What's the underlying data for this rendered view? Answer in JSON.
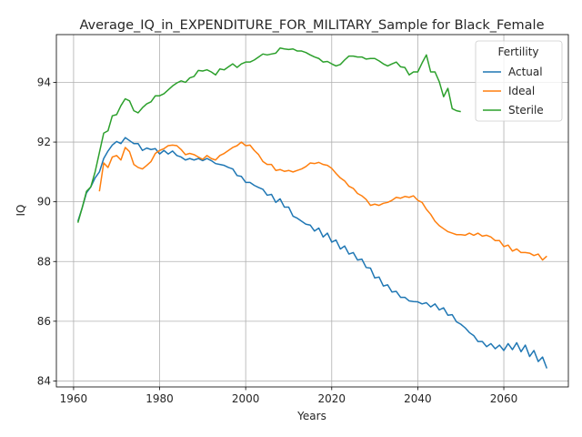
{
  "chart_data": {
    "type": "line",
    "title": "Average_IQ_in_EXPENDITURE_FOR_MILITARY_Sample for Black_Female",
    "xlabel": "Years",
    "ylabel": "IQ",
    "xlim": [
      1956,
      2075
    ],
    "ylim": [
      83.8,
      95.6
    ],
    "xticks": [
      1960,
      1980,
      2000,
      2020,
      2040,
      2060
    ],
    "yticks": [
      84,
      86,
      88,
      90,
      92,
      94
    ],
    "grid": true,
    "legend": {
      "title": "Fertility",
      "position": "top-right"
    },
    "series": [
      {
        "name": "Actual",
        "color": "#1f77b4",
        "x": [
          1961,
          1962,
          1963,
          1964,
          1965,
          1966,
          1967,
          1968,
          1969,
          1970,
          1971,
          1972,
          1973,
          1974,
          1975,
          1976,
          1977,
          1978,
          1979,
          1980,
          1981,
          1982,
          1983,
          1984,
          1985,
          1986,
          1987,
          1988,
          1989,
          1990,
          1991,
          1992,
          1993,
          1994,
          1995,
          1996,
          1997,
          1998,
          1999,
          2000,
          2001,
          2002,
          2003,
          2004,
          2005,
          2006,
          2007,
          2008,
          2009,
          2010,
          2011,
          2012,
          2013,
          2014,
          2015,
          2016,
          2017,
          2018,
          2019,
          2020,
          2021,
          2022,
          2023,
          2024,
          2025,
          2026,
          2027,
          2028,
          2029,
          2030,
          2031,
          2032,
          2033,
          2034,
          2035,
          2036,
          2037,
          2038,
          2039,
          2040,
          2041,
          2042,
          2043,
          2044,
          2045,
          2046,
          2047,
          2048,
          2049,
          2050,
          2051,
          2052,
          2053,
          2054,
          2055,
          2056,
          2057,
          2058,
          2059,
          2060,
          2061,
          2062,
          2063,
          2064,
          2065,
          2066,
          2067,
          2068,
          2069,
          2070
        ],
        "values": [
          89.35,
          89.8,
          90.3,
          90.5,
          90.8,
          91.0,
          91.45,
          91.7,
          91.9,
          92.02,
          91.95,
          92.15,
          92.05,
          91.95,
          91.95,
          91.72,
          91.8,
          91.75,
          91.78,
          91.6,
          91.72,
          91.6,
          91.7,
          91.55,
          91.5,
          91.4,
          91.45,
          91.4,
          91.45,
          91.38,
          91.45,
          91.38,
          91.28,
          91.25,
          91.22,
          91.15,
          91.1,
          90.88,
          90.85,
          90.65,
          90.65,
          90.55,
          90.48,
          90.42,
          90.22,
          90.25,
          89.98,
          90.1,
          89.82,
          89.82,
          89.52,
          89.45,
          89.35,
          89.25,
          89.22,
          89.02,
          89.12,
          88.82,
          88.95,
          88.65,
          88.72,
          88.42,
          88.52,
          88.25,
          88.3,
          88.05,
          88.08,
          87.8,
          87.78,
          87.45,
          87.48,
          87.18,
          87.22,
          86.98,
          87.0,
          86.8,
          86.8,
          86.68,
          86.66,
          86.65,
          86.58,
          86.62,
          86.48,
          86.58,
          86.38,
          86.45,
          86.2,
          86.22,
          85.98,
          85.9,
          85.78,
          85.62,
          85.52,
          85.32,
          85.32,
          85.15,
          85.25,
          85.08,
          85.2,
          85.02,
          85.25,
          85.05,
          85.28,
          84.98,
          85.2,
          84.82,
          85.02,
          84.65,
          84.8,
          84.42
        ]
      },
      {
        "name": "Ideal",
        "color": "#ff7f0e",
        "x": [
          1966,
          1967,
          1968,
          1969,
          1970,
          1971,
          1972,
          1973,
          1974,
          1975,
          1976,
          1977,
          1978,
          1979,
          1980,
          1981,
          1982,
          1983,
          1984,
          1985,
          1986,
          1987,
          1988,
          1989,
          1990,
          1991,
          1992,
          1993,
          1994,
          1995,
          1996,
          1997,
          1998,
          1999,
          2000,
          2001,
          2002,
          2003,
          2004,
          2005,
          2006,
          2007,
          2008,
          2009,
          2010,
          2011,
          2012,
          2013,
          2014,
          2015,
          2016,
          2017,
          2018,
          2019,
          2020,
          2021,
          2022,
          2023,
          2024,
          2025,
          2026,
          2027,
          2028,
          2029,
          2030,
          2031,
          2032,
          2033,
          2034,
          2035,
          2036,
          2037,
          2038,
          2039,
          2040,
          2041,
          2042,
          2043,
          2044,
          2045,
          2046,
          2047,
          2048,
          2049,
          2050,
          2051,
          2052,
          2053,
          2054,
          2055,
          2056,
          2057,
          2058,
          2059,
          2060,
          2061,
          2062,
          2063,
          2064,
          2065,
          2066,
          2067,
          2068,
          2069,
          2070
        ],
        "values": [
          90.35,
          91.3,
          91.15,
          91.5,
          91.55,
          91.4,
          91.82,
          91.68,
          91.25,
          91.15,
          91.1,
          91.22,
          91.35,
          91.62,
          91.72,
          91.78,
          91.88,
          91.9,
          91.88,
          91.75,
          91.58,
          91.62,
          91.58,
          91.5,
          91.42,
          91.55,
          91.45,
          91.4,
          91.55,
          91.62,
          91.72,
          91.82,
          91.88,
          92.0,
          91.88,
          91.9,
          91.72,
          91.58,
          91.35,
          91.25,
          91.25,
          91.05,
          91.08,
          91.02,
          91.05,
          91.0,
          91.05,
          91.1,
          91.18,
          91.3,
          91.28,
          91.32,
          91.25,
          91.22,
          91.12,
          90.95,
          90.8,
          90.7,
          90.52,
          90.45,
          90.28,
          90.2,
          90.08,
          89.88,
          89.92,
          89.88,
          89.95,
          89.98,
          90.05,
          90.15,
          90.12,
          90.18,
          90.15,
          90.2,
          90.05,
          89.98,
          89.75,
          89.58,
          89.35,
          89.2,
          89.1,
          89.0,
          88.95,
          88.9,
          88.9,
          88.88,
          88.95,
          88.88,
          88.95,
          88.85,
          88.88,
          88.82,
          88.7,
          88.7,
          88.5,
          88.55,
          88.35,
          88.42,
          88.3,
          88.3,
          88.28,
          88.2,
          88.25,
          88.05,
          88.18
        ]
      },
      {
        "name": "Sterile",
        "color": "#2ca02c",
        "x": [
          1961,
          1962,
          1963,
          1964,
          1965,
          1966,
          1967,
          1968,
          1969,
          1970,
          1971,
          1972,
          1973,
          1974,
          1975,
          1976,
          1977,
          1978,
          1979,
          1980,
          1981,
          1982,
          1983,
          1984,
          1985,
          1986,
          1987,
          1988,
          1989,
          1990,
          1991,
          1992,
          1993,
          1994,
          1995,
          1996,
          1997,
          1998,
          1999,
          2000,
          2001,
          2002,
          2003,
          2004,
          2005,
          2006,
          2007,
          2008,
          2009,
          2010,
          2011,
          2012,
          2013,
          2014,
          2015,
          2016,
          2017,
          2018,
          2019,
          2020,
          2021,
          2022,
          2023,
          2024,
          2025,
          2026,
          2027,
          2028,
          2029,
          2030,
          2031,
          2032,
          2033,
          2034,
          2035,
          2036,
          2037,
          2038,
          2039,
          2040,
          2041,
          2042,
          2043,
          2044,
          2045,
          2046,
          2047,
          2048,
          2049,
          2050
        ],
        "values": [
          89.3,
          89.8,
          90.35,
          90.5,
          91.0,
          91.65,
          92.3,
          92.38,
          92.88,
          92.92,
          93.22,
          93.45,
          93.38,
          93.05,
          92.98,
          93.15,
          93.28,
          93.35,
          93.55,
          93.55,
          93.62,
          93.75,
          93.88,
          93.98,
          94.05,
          94.0,
          94.15,
          94.2,
          94.4,
          94.38,
          94.42,
          94.35,
          94.25,
          94.45,
          94.42,
          94.52,
          94.62,
          94.5,
          94.62,
          94.68,
          94.68,
          94.75,
          94.85,
          94.95,
          94.92,
          94.95,
          94.98,
          95.15,
          95.12,
          95.1,
          95.12,
          95.05,
          95.05,
          95.0,
          94.92,
          94.85,
          94.8,
          94.68,
          94.7,
          94.62,
          94.55,
          94.6,
          94.75,
          94.88,
          94.88,
          94.85,
          94.85,
          94.78,
          94.8,
          94.8,
          94.72,
          94.62,
          94.55,
          94.62,
          94.68,
          94.52,
          94.5,
          94.25,
          94.35,
          94.35,
          94.65,
          94.92,
          94.35,
          94.35,
          94.02,
          93.52,
          93.8,
          93.12,
          93.05,
          93.02
        ]
      }
    ]
  }
}
